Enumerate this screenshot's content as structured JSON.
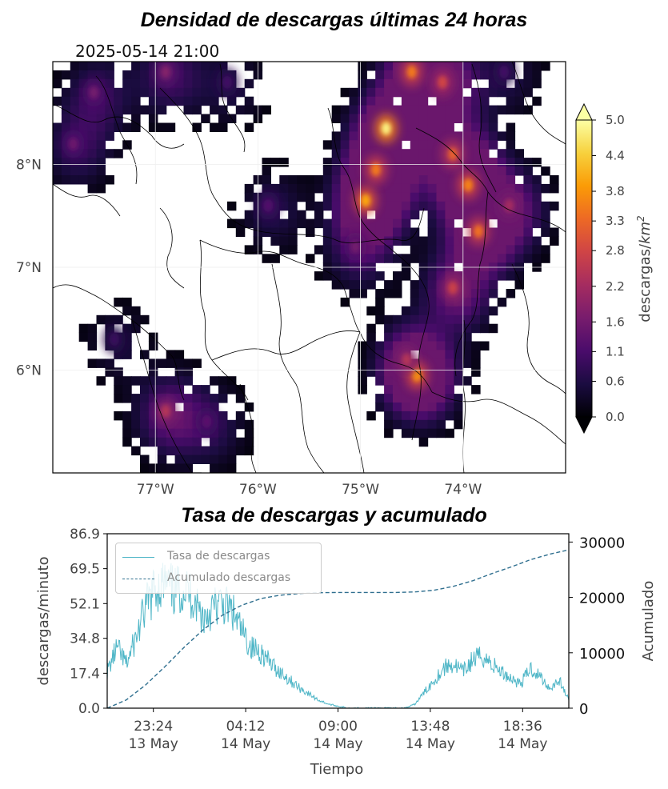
{
  "header": {
    "title": "Densidad de descargas últimas 24 horas",
    "timestamp": "2025-05-14 21:00",
    "subtitle": "Tasa de descargas y acumulado"
  },
  "colors": {
    "rate_line": "#4fb6c7",
    "cumulative_line": "#2f6f8f",
    "colormap": [
      "#000004",
      "#1b0c41",
      "#4a0c6b",
      "#781c6d",
      "#a52c60",
      "#cf4446",
      "#ed6925",
      "#fb9b06",
      "#f7d13d",
      "#fcffa4"
    ]
  },
  "chart_data": [
    {
      "type": "heatmap",
      "title": "Densidad de descargas últimas 24 horas",
      "xlabel": "",
      "ylabel": "",
      "x_ticks": [
        "77°W",
        "76°W",
        "75°W",
        "74°W"
      ],
      "y_ticks": [
        "8°N",
        "7°N",
        "6°N"
      ],
      "xlim": [
        -78.0,
        -73.0
      ],
      "ylim": [
        5.0,
        9.0
      ],
      "colorbar": {
        "label": "descargas/km²",
        "label_text": "descargas/",
        "label_unit": "km",
        "label_exp": "2",
        "ticks": [
          "0.0",
          "0.6",
          "1.1",
          "1.6",
          "2.2",
          "2.8",
          "3.3",
          "3.8",
          "4.4",
          "5.0"
        ],
        "range": [
          0.0,
          5.0
        ],
        "colormap": "inferno",
        "extend": "both"
      },
      "hotspots": [
        {
          "lon": -74.75,
          "lat": 8.35,
          "value": 4.8
        },
        {
          "lon": -74.95,
          "lat": 7.65,
          "value": 4.0
        },
        {
          "lon": -74.85,
          "lat": 7.95,
          "value": 3.5
        },
        {
          "lon": -73.95,
          "lat": 7.8,
          "value": 3.6
        },
        {
          "lon": -74.1,
          "lat": 8.1,
          "value": 3.2
        },
        {
          "lon": -73.85,
          "lat": 7.35,
          "value": 3.4
        },
        {
          "lon": -74.45,
          "lat": 5.95,
          "value": 3.8
        },
        {
          "lon": -74.55,
          "lat": 6.1,
          "value": 2.4
        },
        {
          "lon": -74.1,
          "lat": 6.8,
          "value": 2.7
        },
        {
          "lon": -73.55,
          "lat": 7.6,
          "value": 2.2
        },
        {
          "lon": -74.5,
          "lat": 8.9,
          "value": 3.5
        },
        {
          "lon": -74.2,
          "lat": 8.8,
          "value": 2.8
        },
        {
          "lon": -77.6,
          "lat": 8.7,
          "value": 1.6
        },
        {
          "lon": -76.9,
          "lat": 8.9,
          "value": 1.8
        },
        {
          "lon": -77.8,
          "lat": 8.2,
          "value": 1.5
        },
        {
          "lon": -76.9,
          "lat": 5.6,
          "value": 2.4
        },
        {
          "lon": -76.5,
          "lat": 5.5,
          "value": 1.3
        },
        {
          "lon": -75.9,
          "lat": 7.6,
          "value": 1.2
        },
        {
          "lon": -77.4,
          "lat": 6.3,
          "value": 0.9
        },
        {
          "lon": -75.05,
          "lat": 7.2,
          "value": 1.6
        },
        {
          "lon": -76.3,
          "lat": 8.8,
          "value": 1.0
        },
        {
          "lon": -73.6,
          "lat": 8.9,
          "value": 1.0
        }
      ]
    },
    {
      "type": "line",
      "title": "Tasa de descargas y acumulado",
      "xlabel": "Tiempo",
      "ylabel": "descargas/minuto",
      "ylabel_right": "Acumulado",
      "x_ticks": [
        {
          "time": "23:24",
          "date": "13 May"
        },
        {
          "time": "04:12",
          "date": "14 May"
        },
        {
          "time": "09:00",
          "date": "14 May"
        },
        {
          "time": "13:48",
          "date": "14 May"
        },
        {
          "time": "18:36",
          "date": "14 May"
        }
      ],
      "xlim": [
        "2025-05-13 21:00",
        "2025-05-14 21:00"
      ],
      "ylim": [
        0.0,
        86.9
      ],
      "y_ticks": [
        "0.0",
        "17.4",
        "34.8",
        "52.1",
        "69.5",
        "86.9"
      ],
      "ylim_right": [
        0,
        31500
      ],
      "y_ticks_right": [
        "0",
        "10000",
        "20000",
        "30000"
      ],
      "legend_position": "top-left",
      "series": [
        {
          "name": "Tasa de descargas",
          "axis": "left",
          "style": "solid",
          "times": [
            "21:00",
            "21:30",
            "22:00",
            "22:30",
            "23:00",
            "23:30",
            "00:00",
            "00:30",
            "01:00",
            "01:30",
            "02:00",
            "02:30",
            "03:00",
            "03:30",
            "04:00",
            "04:30",
            "05:00",
            "05:30",
            "06:00",
            "06:30",
            "07:00",
            "07:30",
            "08:00",
            "08:30",
            "09:00",
            "09:30",
            "10:00",
            "10:30",
            "11:00",
            "11:30",
            "12:00",
            "12:30",
            "13:00",
            "13:30",
            "14:00",
            "14:30",
            "15:00",
            "15:30",
            "16:00",
            "16:30",
            "17:00",
            "17:30",
            "18:00",
            "18:30",
            "19:00",
            "19:30",
            "20:00",
            "20:30",
            "21:00"
          ],
          "values": [
            18,
            30,
            22,
            35,
            50,
            60,
            62,
            58,
            60,
            55,
            45,
            50,
            52,
            48,
            38,
            30,
            28,
            22,
            18,
            14,
            10,
            7,
            4,
            2,
            1,
            0,
            0,
            0,
            0,
            0,
            0,
            0,
            2,
            8,
            14,
            20,
            22,
            18,
            24,
            26,
            22,
            18,
            15,
            12,
            20,
            16,
            10,
            14,
            4
          ]
        },
        {
          "name": "Acumulado descargas",
          "axis": "right",
          "style": "dashed",
          "times": [
            "21:00",
            "22:00",
            "23:00",
            "00:00",
            "01:00",
            "02:00",
            "03:00",
            "04:00",
            "05:00",
            "06:00",
            "07:00",
            "08:00",
            "09:00",
            "10:00",
            "11:00",
            "12:00",
            "13:00",
            "14:00",
            "15:00",
            "16:00",
            "17:00",
            "18:00",
            "19:00",
            "20:00",
            "21:00"
          ],
          "values": [
            0,
            1500,
            4200,
            7500,
            11000,
            14200,
            16800,
            18600,
            19800,
            20400,
            20700,
            20850,
            20900,
            20900,
            20900,
            20900,
            21000,
            21300,
            22000,
            23000,
            24300,
            25500,
            26800,
            27800,
            28600
          ]
        }
      ]
    }
  ]
}
